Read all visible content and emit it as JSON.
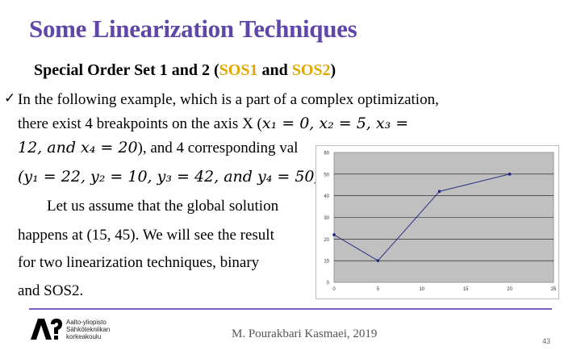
{
  "slide": {
    "title": "Some Linearization Techniques",
    "subtitle": {
      "part1": "Special Order Set 1 and 2 (",
      "sos1": "SOS1",
      "and": " and ",
      "sos2": "SOS2",
      "part2": ")"
    },
    "bullet_icon": "checkmark-icon",
    "lines": {
      "l1": "In the following example, which is a part of a complex optimization,",
      "l2a": "there exist 4 breakpoints on the axis X (",
      "l2b": "x₁ = 0, x₂ = 5, x₃ =",
      "l3a": "12, and x₄ = 20",
      "l3b": "), and 4 corresponding val",
      "l4a": "(y₁ = 22, y₂ = 10, y₃ = 42, and y₄ = 50).",
      "l5": "Let us assume that the global solution",
      "l6": "happens at (15, 45). We will see the result",
      "l7": "for two linearization techniques, binary",
      "l8": "and SOS2."
    },
    "footer": {
      "logo_lines": [
        "Aalto-yliopisto",
        "Sähkötekniikan",
        "korkeakoulu"
      ],
      "author": "M. Pourakbari Kasmaei, 2019",
      "page": "43"
    },
    "colors": {
      "title": "#5f46a8",
      "highlight": "#e0a800",
      "plot_bg": "#c0c0c0",
      "series": "#1a237e",
      "footer_line": "#7b62c2"
    }
  },
  "chart_data": {
    "type": "line",
    "x": [
      0,
      5,
      12,
      20
    ],
    "series": [
      {
        "values": [
          22,
          10,
          42,
          50
        ]
      }
    ],
    "xticks": [
      "0",
      "5",
      "10",
      "15",
      "20",
      "25"
    ],
    "yticks": [
      "0",
      "10",
      "20",
      "30",
      "40",
      "50",
      "60"
    ],
    "xlim": [
      0,
      25
    ],
    "ylim": [
      0,
      60
    ],
    "grid": true,
    "legend": "none"
  }
}
